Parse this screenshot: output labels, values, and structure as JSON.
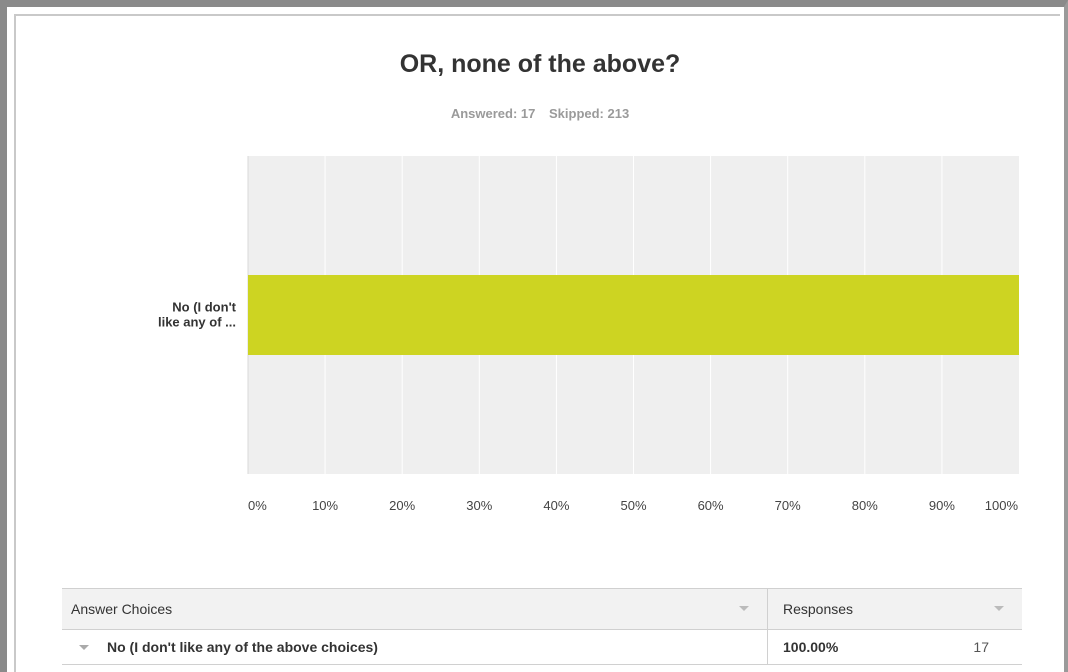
{
  "question": {
    "title": "OR, none of the above?",
    "answered": "Answered: 17",
    "skipped": "Skipped: 213"
  },
  "chart_data": {
    "type": "bar",
    "orientation": "horizontal",
    "categories": [
      "No (I don't like any of ..."
    ],
    "category_lines": [
      "No (I don't",
      "like any of ..."
    ],
    "values": [
      100
    ],
    "xlim": [
      0,
      100
    ],
    "xticks": [
      "0%",
      "10%",
      "20%",
      "30%",
      "40%",
      "50%",
      "60%",
      "70%",
      "80%",
      "90%",
      "100%"
    ],
    "grid": true,
    "bar_color": "#cdd422",
    "plot_bg": "#efefef",
    "grid_color": "#ffffff"
  },
  "table": {
    "headers": {
      "choices": "Answer Choices",
      "responses": "Responses"
    },
    "rows": [
      {
        "choice": "No (I don't like any of the above choices)",
        "percent": "100.00%",
        "count": "17"
      }
    ]
  }
}
